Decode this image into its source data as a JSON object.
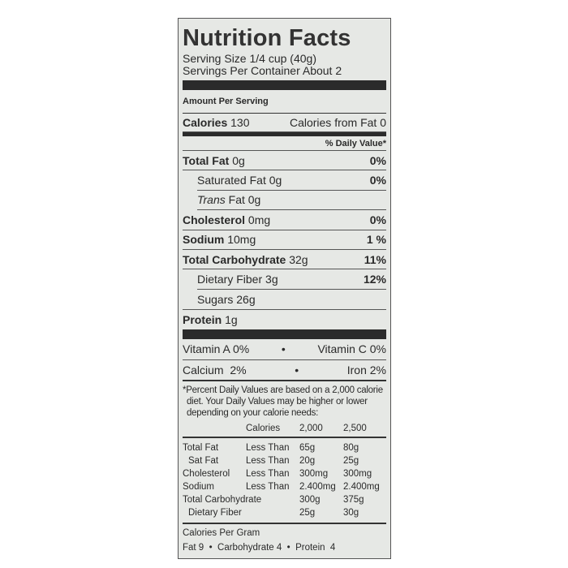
{
  "title": "Nutrition Facts",
  "serving_size": "Serving Size 1/4 cup (40g)",
  "servings_per_container": "Servings Per Container About 2",
  "amount_per_serving": "Amount Per Serving",
  "calories": {
    "label": "Calories",
    "value": "130",
    "from_fat": "Calories from Fat 0"
  },
  "daily_value_header": "% Daily Value*",
  "nutrients": [
    {
      "label": "Total Fat",
      "amount": "0g",
      "dv": "0%"
    },
    {
      "label": "Saturated Fat",
      "amount": "0g",
      "dv": "0%"
    },
    {
      "label": "Trans",
      "label2": "Fat",
      "amount": "0g",
      "dv": ""
    },
    {
      "label": "Cholesterol",
      "amount": "0mg",
      "dv": "0%"
    },
    {
      "label": "Sodium",
      "amount": "10mg",
      "dv": "1 %"
    },
    {
      "label": "Total Carbohydrate",
      "amount": "32g",
      "dv": "11%"
    },
    {
      "label": "Dietary Fiber",
      "amount": "3g",
      "dv": "12%"
    },
    {
      "label": "Sugars",
      "amount": "26g",
      "dv": ""
    },
    {
      "label": "Protein",
      "amount": "1g",
      "dv": ""
    }
  ],
  "vitamins": [
    {
      "left": "Vitamin A 0%",
      "right": "Vitamin C 0%"
    },
    {
      "left": "Calcium  2%",
      "right": "Iron 2%"
    }
  ],
  "separator": "•",
  "footnote": [
    "*Percent Daily Values are based on a 2,000 calorie",
    "diet. Your Daily Values may be higher or lower",
    "depending on your calorie needs:"
  ],
  "table": {
    "header": [
      "",
      "Calories",
      "2,000",
      "2,500"
    ],
    "rows": [
      [
        "Total Fat",
        "Less Than",
        "65g",
        "80g"
      ],
      [
        "Sat Fat",
        "Less Than",
        "20g",
        "25g"
      ],
      [
        "Cholesterol",
        "Less Than",
        "300mg",
        "300mg"
      ],
      [
        "Sodium",
        "Less Than",
        "2.400mg",
        "2.400mg"
      ],
      [
        "Total Carbohydrate",
        "",
        "300g",
        "375g"
      ],
      [
        "Dietary Fiber",
        "",
        "25g",
        "30g"
      ]
    ]
  },
  "calories_per_gram": "Calories Per Gram",
  "calories_per_gram_values": "Fat 9  •  Carbohydrate 4  •  Protein  4"
}
